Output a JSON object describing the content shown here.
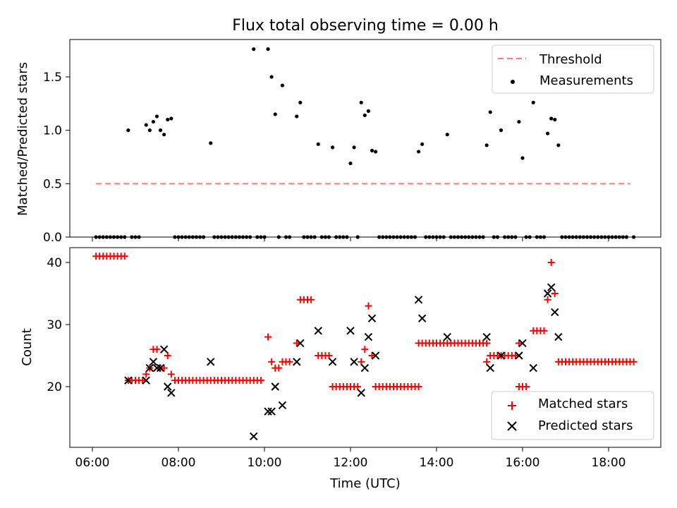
{
  "title": "Flux total observing time = 0.00 h",
  "colors": {
    "threshold": "#ff7a7a",
    "measure": "#000000",
    "matched": "#ff0000",
    "predicted": "#000000"
  },
  "chart_data": [
    {
      "type": "scatter",
      "panel": "top",
      "xlabel": "",
      "ylabel": "Matched/Predicted stars",
      "ylim": [
        0.0,
        1.85
      ],
      "yticks": [
        "0.0",
        "0.5",
        "1.0",
        "1.5"
      ],
      "legend": {
        "placement": "top-right",
        "entries": [
          "Threshold",
          "Measurements"
        ]
      },
      "series": [
        {
          "name": "Threshold",
          "kind": "dashed-line",
          "x": [
            "06:05",
            "18:30"
          ],
          "values": [
            0.5,
            0.5
          ]
        },
        {
          "name": "Measurements",
          "kind": "dots",
          "points": [
            [
              "06:50",
              1.0
            ],
            [
              "07:15",
              1.05
            ],
            [
              "07:20",
              1.0
            ],
            [
              "07:25",
              1.08
            ],
            [
              "07:30",
              1.13
            ],
            [
              "07:35",
              1.0
            ],
            [
              "07:40",
              0.96
            ],
            [
              "07:45",
              1.1
            ],
            [
              "07:50",
              1.11
            ],
            [
              "08:45",
              0.88
            ],
            [
              "09:45",
              1.76
            ],
            [
              "10:05",
              1.76
            ],
            [
              "10:10",
              1.5
            ],
            [
              "10:15",
              1.15
            ],
            [
              "10:25",
              1.42
            ],
            [
              "10:45",
              1.13
            ],
            [
              "10:50",
              1.26
            ],
            [
              "11:15",
              0.87
            ],
            [
              "11:35",
              0.84
            ],
            [
              "12:00",
              0.69
            ],
            [
              "12:05",
              0.84
            ],
            [
              "12:15",
              1.26
            ],
            [
              "12:20",
              1.14
            ],
            [
              "12:25",
              1.18
            ],
            [
              "12:30",
              0.81
            ],
            [
              "12:35",
              0.8
            ],
            [
              "13:35",
              0.8
            ],
            [
              "13:40",
              0.87
            ],
            [
              "14:15",
              0.96
            ],
            [
              "15:10",
              0.86
            ],
            [
              "15:15",
              1.17
            ],
            [
              "15:30",
              1.0
            ],
            [
              "15:55",
              1.08
            ],
            [
              "16:00",
              0.74
            ],
            [
              "16:15",
              1.26
            ],
            [
              "16:35",
              0.97
            ],
            [
              "16:40",
              1.11
            ],
            [
              "16:45",
              1.1
            ],
            [
              "16:50",
              0.86
            ]
          ],
          "zero_points": [
            "06:05",
            "06:10",
            "06:15",
            "06:20",
            "06:25",
            "06:30",
            "06:35",
            "06:40",
            "06:45",
            "06:55",
            "07:00",
            "07:05",
            "07:55",
            "08:00",
            "08:05",
            "08:10",
            "08:15",
            "08:20",
            "08:25",
            "08:30",
            "08:35",
            "08:50",
            "08:55",
            "09:00",
            "09:05",
            "09:10",
            "09:15",
            "09:20",
            "09:25",
            "09:30",
            "09:35",
            "09:40",
            "09:50",
            "09:55",
            "10:00",
            "10:20",
            "10:30",
            "10:35",
            "10:55",
            "11:00",
            "11:05",
            "11:10",
            "11:20",
            "11:25",
            "11:30",
            "11:40",
            "11:45",
            "11:50",
            "11:55",
            "12:10",
            "12:40",
            "12:45",
            "12:50",
            "12:55",
            "13:00",
            "13:05",
            "13:10",
            "13:15",
            "13:20",
            "13:25",
            "13:30",
            "13:45",
            "13:50",
            "13:55",
            "14:00",
            "14:05",
            "14:10",
            "14:20",
            "14:25",
            "14:30",
            "14:35",
            "14:40",
            "14:45",
            "14:50",
            "14:55",
            "15:00",
            "15:05",
            "15:20",
            "15:25",
            "15:35",
            "15:40",
            "15:45",
            "15:50",
            "16:05",
            "16:10",
            "16:20",
            "16:25",
            "16:30",
            "16:55",
            "17:00",
            "17:05",
            "17:10",
            "17:15",
            "17:20",
            "17:25",
            "17:30",
            "17:35",
            "17:40",
            "17:45",
            "17:50",
            "17:55",
            "18:00",
            "18:05",
            "18:10",
            "18:15",
            "18:20",
            "18:25",
            "18:35"
          ]
        }
      ]
    },
    {
      "type": "scatter",
      "panel": "bottom",
      "xlabel": "Time (UTC)",
      "ylabel": "Count",
      "ylim": [
        10.5,
        42.5
      ],
      "yticks": [
        "20",
        "30",
        "40"
      ],
      "xticks": [
        "06:00",
        "08:00",
        "10:00",
        "12:00",
        "14:00",
        "16:00",
        "18:00"
      ],
      "legend": {
        "placement": "bottom-right",
        "entries": [
          "Matched stars",
          "Predicted stars"
        ]
      },
      "series": [
        {
          "name": "Matched stars",
          "marker": "plus",
          "segments": [
            {
              "from": "06:05",
              "to": "06:45",
              "value": 41
            },
            {
              "from": "06:50",
              "to": "07:10",
              "value": 21
            },
            {
              "from": "07:55",
              "to": "09:55",
              "value": 21
            },
            {
              "from": "10:25",
              "to": "10:35",
              "value": 24
            },
            {
              "from": "10:50",
              "to": "11:05",
              "value": 34
            },
            {
              "from": "11:15",
              "to": "11:30",
              "value": 25
            },
            {
              "from": "11:35",
              "to": "12:10",
              "value": 20
            },
            {
              "from": "12:35",
              "to": "13:35",
              "value": 20
            },
            {
              "from": "13:35",
              "to": "15:10",
              "value": 27
            },
            {
              "from": "15:15",
              "to": "15:50",
              "value": 25
            },
            {
              "from": "15:55",
              "to": "16:05",
              "value": 20
            },
            {
              "from": "16:15",
              "to": "16:30",
              "value": 29
            },
            {
              "from": "16:50",
              "to": "18:35",
              "value": 24
            }
          ],
          "points": [
            [
              "07:15",
              22
            ],
            [
              "07:20",
              23
            ],
            [
              "07:25",
              26
            ],
            [
              "07:30",
              26
            ],
            [
              "07:35",
              23
            ],
            [
              "07:40",
              23
            ],
            [
              "07:45",
              25
            ],
            [
              "07:50",
              22
            ],
            [
              "10:05",
              28
            ],
            [
              "10:10",
              24
            ],
            [
              "10:15",
              23
            ],
            [
              "10:20",
              23
            ],
            [
              "10:45",
              27
            ],
            [
              "12:15",
              24
            ],
            [
              "12:20",
              26
            ],
            [
              "12:25",
              33
            ],
            [
              "12:30",
              25
            ],
            [
              "15:10",
              24
            ],
            [
              "15:55",
              27
            ],
            [
              "16:35",
              34
            ],
            [
              "16:40",
              40
            ],
            [
              "16:45",
              35
            ]
          ]
        },
        {
          "name": "Predicted stars",
          "marker": "x",
          "points": [
            [
              "06:50",
              21
            ],
            [
              "07:15",
              21
            ],
            [
              "07:20",
              23
            ],
            [
              "07:25",
              24
            ],
            [
              "07:30",
              23
            ],
            [
              "07:35",
              23
            ],
            [
              "07:40",
              26
            ],
            [
              "07:45",
              20
            ],
            [
              "07:50",
              19
            ],
            [
              "08:45",
              24
            ],
            [
              "09:45",
              12
            ],
            [
              "10:05",
              16
            ],
            [
              "10:10",
              16
            ],
            [
              "10:15",
              20
            ],
            [
              "10:25",
              17
            ],
            [
              "10:45",
              24
            ],
            [
              "10:50",
              27
            ],
            [
              "11:15",
              29
            ],
            [
              "11:35",
              24
            ],
            [
              "12:00",
              29
            ],
            [
              "12:05",
              24
            ],
            [
              "12:15",
              19
            ],
            [
              "12:20",
              23
            ],
            [
              "12:25",
              28
            ],
            [
              "12:30",
              31
            ],
            [
              "12:35",
              25
            ],
            [
              "13:35",
              34
            ],
            [
              "13:40",
              31
            ],
            [
              "14:15",
              28
            ],
            [
              "15:10",
              28
            ],
            [
              "15:15",
              23
            ],
            [
              "15:30",
              25
            ],
            [
              "15:55",
              25
            ],
            [
              "16:00",
              27
            ],
            [
              "16:15",
              23
            ],
            [
              "16:35",
              35
            ],
            [
              "16:40",
              36
            ],
            [
              "16:45",
              32
            ],
            [
              "16:50",
              28
            ]
          ]
        }
      ]
    }
  ]
}
